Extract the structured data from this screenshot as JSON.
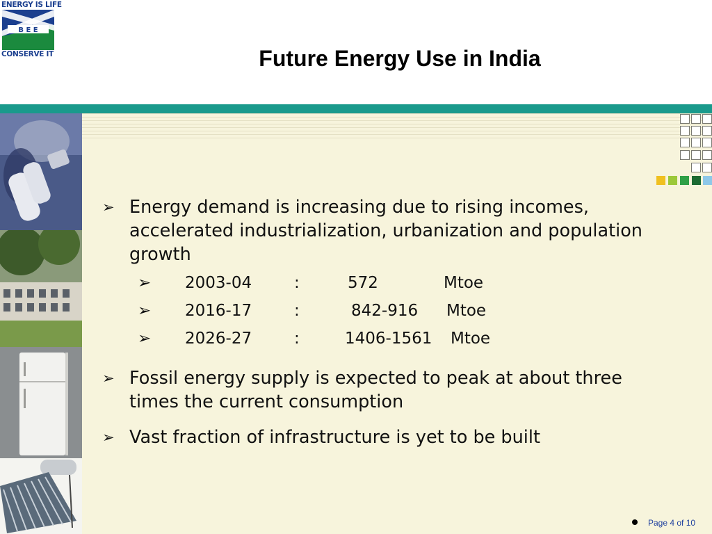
{
  "logo": {
    "top_text": "ENERGY IS LIFE",
    "mark_text": "B E E",
    "bottom_text": "CONSERVE IT"
  },
  "slide": {
    "title": "Future Energy Use in India",
    "bullets": [
      "Energy demand is increasing due to rising incomes, accelerated industrialization, urbanization and population growth",
      "Fossil energy supply is expected to peak at about three times the current consumption",
      "Vast fraction of infrastructure is yet to be built"
    ],
    "sub_items": [
      {
        "year": "2003-04",
        "sep": ":",
        "value": "572",
        "unit": "Mtoe"
      },
      {
        "year": "2016-17",
        "sep": ":",
        "value": "842-916",
        "unit": "Mtoe"
      },
      {
        "year": "2026-27",
        "sep": ":",
        "value": "1406-1561",
        "unit": "Mtoe"
      }
    ],
    "bullet_glyph": "➢",
    "page_label": "Page 4 of 10"
  },
  "colors": {
    "teal_bar": "#1a9a8c",
    "background": "#f7f4dc",
    "page_label": "#1e3f9e"
  }
}
